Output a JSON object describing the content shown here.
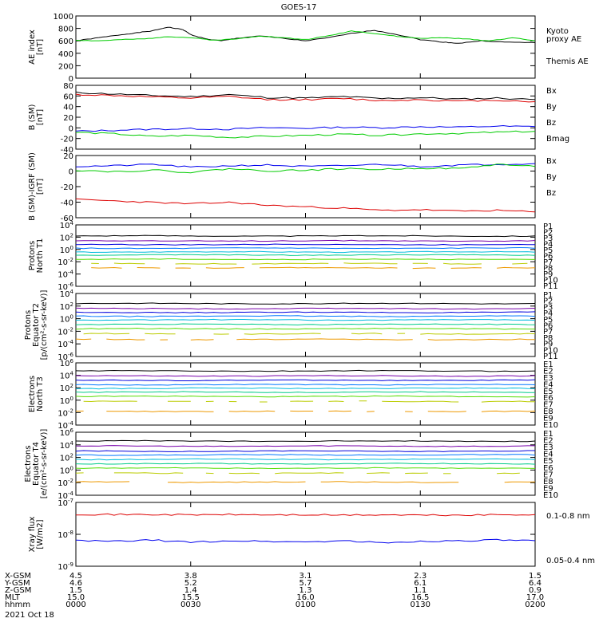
{
  "title": "GOES-17",
  "colors": {
    "black": "#000000",
    "green": "#00cc00",
    "blue": "#0000ee",
    "red": "#dd0000",
    "p": [
      "#000000",
      "#7700aa",
      "#0000dd",
      "#0077ff",
      "#00bbdd",
      "#00cc88",
      "#55dd00",
      "#bbcc00",
      "#ee9900",
      "#dd3300",
      "#cc0000"
    ],
    "e": [
      "#000000",
      "#7700aa",
      "#0000dd",
      "#0077ff",
      "#00bbdd",
      "#00cc88",
      "#55dd00",
      "#bbcc00",
      "#ee9900",
      "#dd3300",
      "#cc0000"
    ]
  },
  "chart_data": [
    {
      "type": "line",
      "ylabel": [
        "AE index",
        "[nT]"
      ],
      "yticks": [
        "1000",
        "800",
        "600",
        "400",
        "200",
        "0"
      ],
      "ylim": [
        0,
        1000
      ],
      "legend": [
        {
          "text": "Kyoto",
          "color": "green"
        },
        {
          "text": "proxy AE",
          "color": "green"
        },
        {
          "text": "Themis AE",
          "color": "black"
        }
      ],
      "series": [
        {
          "name": "Themis AE",
          "color": "black",
          "x": [
            0,
            3,
            6,
            8,
            10,
            12,
            14,
            15,
            17,
            19,
            21,
            24,
            27,
            30,
            33,
            36,
            39,
            42,
            45,
            48,
            50,
            53,
            56,
            60
          ],
          "values": [
            600,
            650,
            700,
            730,
            760,
            820,
            780,
            700,
            630,
            600,
            640,
            680,
            640,
            600,
            650,
            720,
            770,
            700,
            620,
            580,
            560,
            600,
            580,
            570
          ]
        },
        {
          "name": "Kyoto proxy AE",
          "color": "green",
          "x": [
            0,
            3,
            6,
            9,
            12,
            15,
            18,
            21,
            24,
            27,
            30,
            33,
            36,
            39,
            42,
            45,
            48,
            51,
            54,
            57,
            60
          ],
          "values": [
            610,
            600,
            620,
            630,
            670,
            650,
            610,
            630,
            680,
            650,
            620,
            680,
            760,
            720,
            670,
            640,
            650,
            630,
            600,
            650,
            600
          ]
        }
      ]
    },
    {
      "type": "line",
      "ylabel": [
        "B (SM)",
        "[nT]"
      ],
      "yticks": [
        "80",
        "60",
        "40",
        "20",
        "0",
        "-20",
        "-40"
      ],
      "ylim": [
        -45,
        80
      ],
      "legend": [
        {
          "text": "Bx",
          "color": "blue"
        },
        {
          "text": "By",
          "color": "green"
        },
        {
          "text": "Bz",
          "color": "red"
        },
        {
          "text": "Bmag",
          "color": "black"
        }
      ],
      "series": [
        {
          "name": "Bmag",
          "color": "black",
          "x": [
            0,
            5,
            10,
            15,
            20,
            25,
            30,
            35,
            40,
            45,
            50,
            55,
            60
          ],
          "values": [
            66,
            63,
            60,
            58,
            62,
            56,
            55,
            58,
            54,
            56,
            53,
            55,
            52
          ]
        },
        {
          "name": "Bz",
          "color": "red",
          "x": [
            0,
            5,
            10,
            15,
            20,
            25,
            30,
            35,
            40,
            45,
            50,
            55,
            60
          ],
          "values": [
            62,
            60,
            57,
            55,
            58,
            52,
            52,
            54,
            50,
            52,
            49,
            51,
            48
          ]
        },
        {
          "name": "Bx",
          "color": "blue",
          "x": [
            0,
            5,
            10,
            15,
            20,
            25,
            30,
            35,
            40,
            45,
            50,
            55,
            60
          ],
          "values": [
            -10,
            -8,
            -6,
            -5,
            -6,
            -3,
            -4,
            -2,
            -3,
            -1,
            -2,
            0,
            -1
          ]
        },
        {
          "name": "By",
          "color": "green",
          "x": [
            0,
            5,
            10,
            15,
            20,
            25,
            30,
            35,
            40,
            45,
            50,
            55,
            60
          ],
          "values": [
            -12,
            -15,
            -20,
            -18,
            -22,
            -20,
            -18,
            -16,
            -18,
            -15,
            -14,
            -12,
            -10
          ]
        }
      ]
    },
    {
      "type": "line",
      "ylabel": [
        "B (SM)-IGRF (SM)",
        "[nT]"
      ],
      "yticks": [
        "20",
        "0",
        "-20",
        "-40",
        "-60"
      ],
      "ylim": [
        -65,
        20
      ],
      "legend": [
        {
          "text": "Bx",
          "color": "blue"
        },
        {
          "text": "By",
          "color": "green"
        },
        {
          "text": "Bz",
          "color": "red"
        }
      ],
      "series": [
        {
          "name": "Bx",
          "color": "blue",
          "x": [
            0,
            5,
            10,
            15,
            20,
            25,
            30,
            35,
            40,
            45,
            50,
            55,
            60
          ],
          "values": [
            5,
            6,
            8,
            4,
            6,
            7,
            5,
            6,
            8,
            5,
            7,
            8,
            9
          ]
        },
        {
          "name": "By",
          "color": "green",
          "x": [
            0,
            5,
            10,
            15,
            20,
            25,
            30,
            35,
            40,
            45,
            50,
            55,
            60
          ],
          "values": [
            0,
            -2,
            0,
            -3,
            2,
            -1,
            0,
            2,
            1,
            3,
            2,
            8,
            5
          ]
        },
        {
          "name": "Bz",
          "color": "red",
          "x": [
            0,
            5,
            10,
            15,
            20,
            25,
            30,
            35,
            40,
            45,
            50,
            55,
            60
          ],
          "values": [
            -40,
            -42,
            -44,
            -46,
            -44,
            -48,
            -50,
            -52,
            -55,
            -54,
            -56,
            -55,
            -57
          ]
        }
      ]
    },
    {
      "type": "line",
      "log": true,
      "ylabel": [
        "Protons",
        "North T1"
      ],
      "yticks": [
        "10^4",
        "10^2",
        "10^0",
        "10^-2",
        "10^-4",
        "10^-6"
      ],
      "ylim": [
        -6,
        4
      ],
      "legend_labels": [
        "P1",
        "P2",
        "P3",
        "P4",
        "P5",
        "P6",
        "P7",
        "P8",
        "P9",
        "P10",
        "P11"
      ],
      "series_log_levels": [
        2.2,
        1.4,
        0.8,
        0.2,
        -0.4,
        -0.9,
        -1.6,
        -2.3,
        -3.0
      ]
    },
    {
      "type": "line",
      "log": true,
      "ylabel": [
        "Protons",
        "Equator T2",
        "[p/(cm²-s-sr-keV)]"
      ],
      "yticks": [
        "10^4",
        "10^2",
        "10^0",
        "10^-2",
        "10^-4",
        "10^-6"
      ],
      "ylim": [
        -6,
        4
      ],
      "legend_labels": [
        "P1",
        "P2",
        "P3",
        "P4",
        "P5",
        "P6",
        "P7",
        "P8",
        "P9",
        "P10",
        "P11"
      ],
      "series_log_levels": [
        2.4,
        1.6,
        1.0,
        0.4,
        -0.2,
        -0.9,
        -1.6,
        -2.4,
        -3.3
      ]
    },
    {
      "type": "line",
      "log": true,
      "ylabel": [
        "Electrons",
        "North T3"
      ],
      "yticks": [
        "10^6",
        "10^4",
        "10^2",
        "10^0",
        "10^-2",
        "10^-4"
      ],
      "ylim": [
        -4,
        6
      ],
      "legend_labels": [
        "E1",
        "E2",
        "E3",
        "E4",
        "E5",
        "E6",
        "E7",
        "E8",
        "E9",
        "E10"
      ],
      "series_log_levels": [
        4.7,
        3.9,
        3.2,
        2.5,
        1.9,
        1.3,
        0.6,
        -0.2,
        -1.8
      ]
    },
    {
      "type": "line",
      "log": true,
      "ylabel": [
        "Electrons",
        "Equator T4",
        "[e/(cm²-s-sr-keV)]"
      ],
      "yticks": [
        "10^6",
        "10^4",
        "10^2",
        "10^0",
        "10^-2",
        "10^-4"
      ],
      "ylim": [
        -4,
        6
      ],
      "legend_labels": [
        "E1",
        "E2",
        "E3",
        "E4",
        "E5",
        "E6",
        "E7",
        "E8",
        "E9",
        "E10"
      ],
      "series_log_levels": [
        4.6,
        3.8,
        3.0,
        2.4,
        1.7,
        1.0,
        0.3,
        -0.5,
        -1.9
      ]
    },
    {
      "type": "line",
      "log": true,
      "ylabel": [
        "Xray flux",
        "[W/m2]"
      ],
      "yticks": [
        "10^-7",
        "10^-8",
        "10^-9"
      ],
      "ylim": [
        -9,
        -7
      ],
      "legend": [
        {
          "text": "0.1-0.8 nm",
          "color": "red"
        },
        {
          "text": "0.05-0.4 nm",
          "color": "blue"
        }
      ],
      "series": [
        {
          "name": "0.1-0.8 nm",
          "color": "red",
          "x": [
            0,
            5,
            10,
            15,
            20,
            25,
            30,
            35,
            40,
            45,
            50,
            55,
            60
          ],
          "values": [
            -7.37,
            -7.38,
            -7.38,
            -7.39,
            -7.38,
            -7.39,
            -7.39,
            -7.4,
            -7.39,
            -7.4,
            -7.4,
            -7.39,
            -7.38
          ]
        },
        {
          "name": "0.05-0.4 nm",
          "color": "blue",
          "x": [
            0,
            5,
            10,
            15,
            20,
            25,
            30,
            35,
            40,
            45,
            50,
            55,
            60
          ],
          "values": [
            -8.2,
            -8.22,
            -8.18,
            -8.25,
            -8.2,
            -8.22,
            -8.24,
            -8.2,
            -8.27,
            -8.22,
            -8.2,
            -8.18,
            -8.2
          ]
        }
      ]
    }
  ],
  "xaxis": {
    "row_labels": [
      "X-GSM",
      "Y-GSM",
      "Z-GSM",
      "MLT",
      "hhmm"
    ],
    "date": "2021 Oct 18",
    "ticks": [
      {
        "values": [
          "4.5",
          "4.6",
          "1.5",
          "15.0",
          "0000"
        ]
      },
      {
        "values": [
          "3.8",
          "5.2",
          "1.4",
          "15.5",
          "0030"
        ]
      },
      {
        "values": [
          "3.1",
          "5.7",
          "1.3",
          "16.0",
          "0100"
        ]
      },
      {
        "values": [
          "2.3",
          "6.1",
          "1.1",
          "16.5",
          "0130"
        ]
      },
      {
        "values": [
          "1.5",
          "6.4",
          "0.9",
          "17.0",
          "0200"
        ]
      }
    ]
  }
}
